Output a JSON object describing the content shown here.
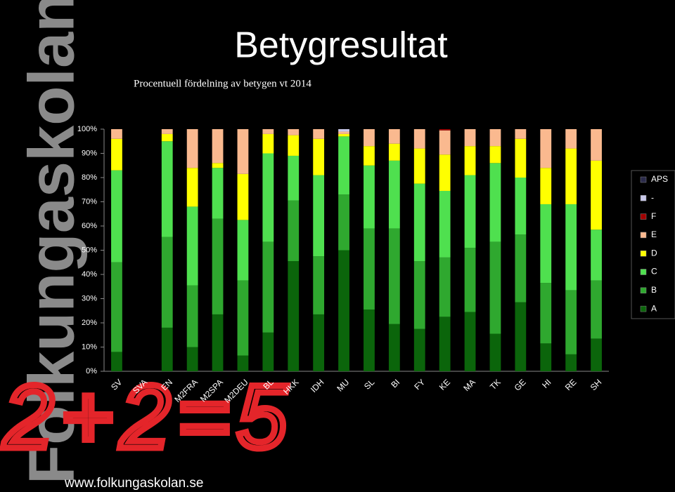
{
  "slide": {
    "brand": "Folkungaskolan",
    "handwriting": "2+2=5",
    "url": "www.folkungaskolan.se"
  },
  "chart_data": {
    "type": "stacked_bar",
    "title": "Betygresultat",
    "subtitle": "Procentuell fördelning av betygen vt 2014",
    "categories": [
      "SV",
      "SVA",
      "EN",
      "M2FRA",
      "M2SPA",
      "M2DEU",
      "BL",
      "HKK",
      "IDH",
      "MU",
      "SL",
      "BI",
      "FY",
      "KE",
      "MA",
      "TK",
      "GE",
      "HI",
      "RE",
      "SH"
    ],
    "series": [
      {
        "name": "A",
        "color": "#0b650b",
        "values": [
          8,
          0,
          18,
          10,
          23.5,
          6.5,
          16,
          45.5,
          23.5,
          50,
          25.5,
          19.5,
          17.5,
          22.5,
          24.5,
          15.5,
          28.5,
          11.5,
          7,
          13.5
        ]
      },
      {
        "name": "B",
        "color": "#2fa82f",
        "values": [
          37,
          0,
          37.5,
          25.5,
          39.5,
          31,
          37.5,
          25,
          24,
          23,
          33.5,
          39.5,
          28,
          24.5,
          26.5,
          38,
          28,
          25,
          26.5,
          24
        ]
      },
      {
        "name": "C",
        "color": "#4fe04f",
        "values": [
          38,
          0,
          39.5,
          32.5,
          21,
          25,
          36.5,
          18.5,
          33.5,
          24,
          26,
          28,
          32,
          27.5,
          30,
          32.5,
          23.5,
          32.5,
          35.5,
          21
        ]
      },
      {
        "name": "D",
        "color": "#ffff00",
        "values": [
          13,
          0,
          3,
          16,
          2,
          19,
          8,
          8.5,
          15,
          1,
          8,
          7,
          14.5,
          15,
          12,
          7,
          16,
          15,
          23,
          28.5
        ]
      },
      {
        "name": "E",
        "color": "#fab98f",
        "values": [
          4,
          0,
          2,
          16,
          14,
          18.5,
          2,
          2.5,
          4,
          1,
          7,
          6,
          8,
          10,
          7,
          7,
          4,
          16,
          8,
          13
        ]
      },
      {
        "name": "F",
        "color": "#a00000",
        "values": [
          0,
          0,
          0,
          0,
          0,
          0,
          0,
          0,
          0,
          0,
          0,
          0,
          0,
          0.5,
          0,
          0,
          0,
          0,
          0,
          0
        ]
      },
      {
        "name": "-",
        "color": "#c8c8ea",
        "values": [
          0,
          0,
          0,
          0,
          0,
          0,
          0,
          0,
          0,
          1,
          0,
          0,
          0,
          0,
          0,
          0,
          0,
          0,
          0,
          0
        ]
      },
      {
        "name": "APS",
        "color": "#2b2b4b",
        "values": [
          0,
          0,
          0,
          0,
          0,
          0,
          0,
          0,
          0,
          0,
          0,
          0,
          0,
          0,
          0,
          0,
          0,
          0,
          0,
          0
        ]
      }
    ],
    "ylim": [
      0,
      100
    ],
    "yticks": [
      {
        "value": 0,
        "label": "0%"
      },
      {
        "value": 10,
        "label": "10%"
      },
      {
        "value": 20,
        "label": "20%"
      },
      {
        "value": 30,
        "label": "30%"
      },
      {
        "value": 40,
        "label": "40%"
      },
      {
        "value": 50,
        "label": "50%"
      },
      {
        "value": 60,
        "label": "60%"
      },
      {
        "value": 70,
        "label": "70%"
      },
      {
        "value": 80,
        "label": "80%"
      },
      {
        "value": 90,
        "label": "90%"
      },
      {
        "value": 100,
        "label": "100%"
      }
    ],
    "legend": "right"
  }
}
